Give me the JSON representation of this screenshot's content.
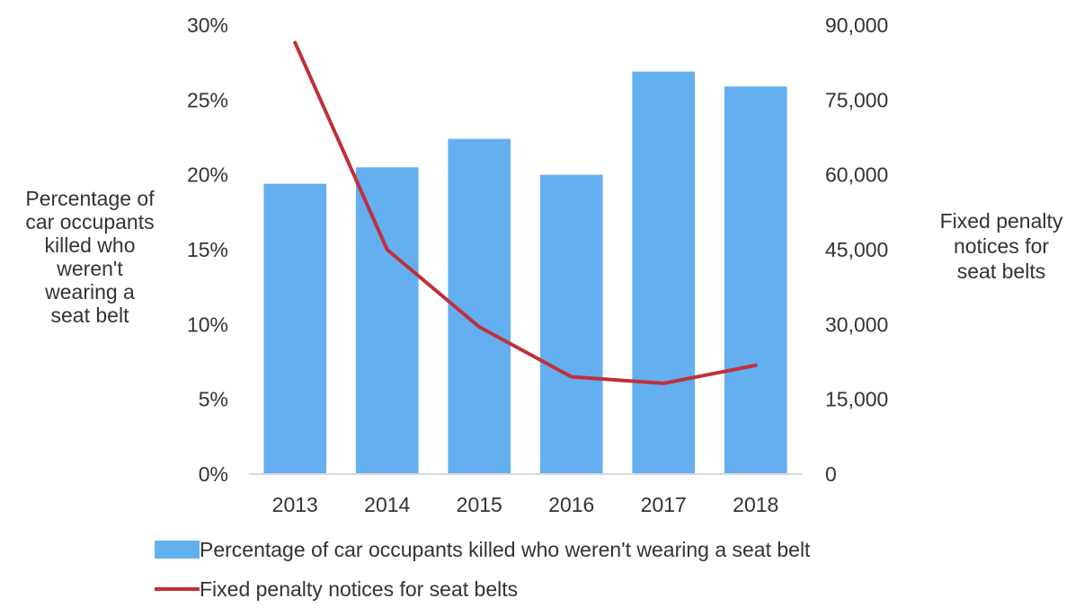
{
  "chart_data": {
    "type": "bar+line",
    "categories": [
      "2013",
      "2014",
      "2015",
      "2016",
      "2017",
      "2018"
    ],
    "series": [
      {
        "name": "Percentage of car occupants killed who weren't wearing a seat belt",
        "type": "bar",
        "axis": "left",
        "color": "#64aff0",
        "values": [
          19.4,
          20.5,
          22.4,
          20.0,
          26.9,
          25.9
        ]
      },
      {
        "name": "Fixed penalty notices for seat belts",
        "type": "line",
        "axis": "right",
        "color": "#c0303a",
        "values": [
          86500,
          45000,
          29500,
          19500,
          18200,
          21800
        ]
      }
    ],
    "y_left": {
      "label": "Percentage of car occupants killed who weren't wearing a seat belt",
      "label_lines": [
        "Percentage of",
        "car occupants",
        "killed who",
        "weren't",
        "wearing a",
        "seat belt"
      ],
      "ylim": [
        0,
        30
      ],
      "ticks": [
        "0%",
        "5%",
        "10%",
        "15%",
        "20%",
        "25%",
        "30%"
      ]
    },
    "y_right": {
      "label": "Fixed penalty notices for seat belts",
      "label_lines": [
        "Fixed penalty",
        "notices for",
        "seat belts"
      ],
      "ylim": [
        0,
        90000
      ],
      "ticks": [
        "0",
        "15,000",
        "30,000",
        "45,000",
        "60,000",
        "75,000",
        "90,000"
      ]
    },
    "grid": false,
    "legend_position": "bottom"
  }
}
